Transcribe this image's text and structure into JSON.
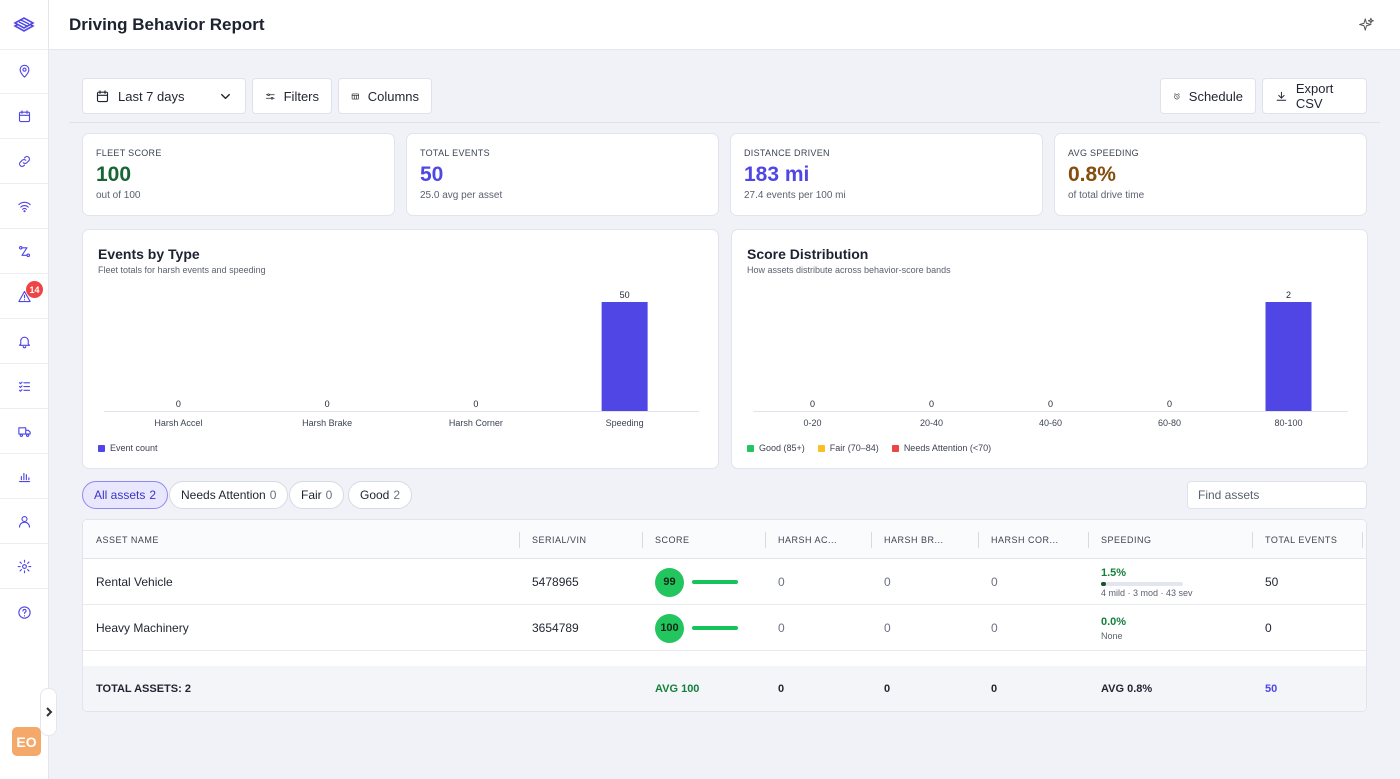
{
  "header": {
    "title": "Driving Behavior Report"
  },
  "sidebar": {
    "badge_count": "14",
    "avatar_initials": "EO"
  },
  "toolbar": {
    "date_range": "Last 7 days",
    "filters_label": "Filters",
    "columns_label": "Columns",
    "schedule_label": "Schedule",
    "export_label": "Export CSV"
  },
  "kpis": [
    {
      "label": "FLEET SCORE",
      "value": "100",
      "sub": "out of 100",
      "color": "#166534"
    },
    {
      "label": "TOTAL EVENTS",
      "value": "50",
      "sub": "25.0 avg per asset",
      "color": "#4f46e5"
    },
    {
      "label": "DISTANCE DRIVEN",
      "value": "183 mi",
      "sub": "27.4 events per 100 mi",
      "color": "#4f46e5"
    },
    {
      "label": "AVG SPEEDING",
      "value": "0.8%",
      "sub": "of total drive time",
      "color": "#854d0e"
    }
  ],
  "chart_data": [
    {
      "type": "bar",
      "title": "Events by Type",
      "subtitle": "Fleet totals for harsh events and speeding",
      "categories": [
        "Harsh Accel",
        "Harsh Brake",
        "Harsh Corner",
        "Speeding"
      ],
      "values": [
        0,
        0,
        0,
        50
      ],
      "ylim": [
        0,
        50
      ],
      "bar_color": "#4f46e5",
      "legend": [
        {
          "name": "Event count",
          "color": "#4f46e5"
        }
      ],
      "legend_position": "bottom-left",
      "grid": false
    },
    {
      "type": "bar",
      "title": "Score Distribution",
      "subtitle": "How assets distribute across behavior-score bands",
      "categories": [
        "0-20",
        "20-40",
        "40-60",
        "60-80",
        "80-100"
      ],
      "values": [
        0,
        0,
        0,
        0,
        2
      ],
      "ylim": [
        0,
        2
      ],
      "bar_color": "#4f46e5",
      "legend": [
        {
          "name": "Good (85+)",
          "color": "#22c55e"
        },
        {
          "name": "Fair (70–84)",
          "color": "#fbbf24"
        },
        {
          "name": "Needs Attention (<70)",
          "color": "#ef4444"
        }
      ],
      "legend_position": "bottom-left",
      "grid": false
    }
  ],
  "filter_pills": [
    {
      "label": "All assets",
      "count": "2",
      "active": true
    },
    {
      "label": "Needs Attention",
      "count": "0",
      "active": false
    },
    {
      "label": "Fair",
      "count": "0",
      "active": false
    },
    {
      "label": "Good",
      "count": "2",
      "active": false
    }
  ],
  "search": {
    "placeholder": "Find assets"
  },
  "table": {
    "columns": [
      "ASSET NAME",
      "SERIAL/VIN",
      "SCORE",
      "HARSH AC...",
      "HARSH BR...",
      "HARSH COR...",
      "SPEEDING",
      "TOTAL EVENTS"
    ],
    "rows": [
      {
        "name": "Rental Vehicle",
        "serial": "5478965",
        "score": "99",
        "harsh_accel": "0",
        "harsh_brake": "0",
        "harsh_corner": "0",
        "speeding_pct": "1.5%",
        "speeding_fill": 0.05,
        "speeding_detail": "4 mild · 3 mod · 43 sev",
        "total_events": "50"
      },
      {
        "name": "Heavy Machinery",
        "serial": "3654789",
        "score": "100",
        "harsh_accel": "0",
        "harsh_brake": "0",
        "harsh_corner": "0",
        "speeding_pct": "0.0%",
        "speeding_fill": 0,
        "speeding_detail": "None",
        "total_events": "0"
      }
    ],
    "footer": {
      "total_assets": "TOTAL ASSETS: 2",
      "avg_score": "AVG 100",
      "harsh_accel": "0",
      "harsh_brake": "0",
      "harsh_corner": "0",
      "avg_speeding": "AVG 0.8%",
      "total_events": "50"
    }
  }
}
